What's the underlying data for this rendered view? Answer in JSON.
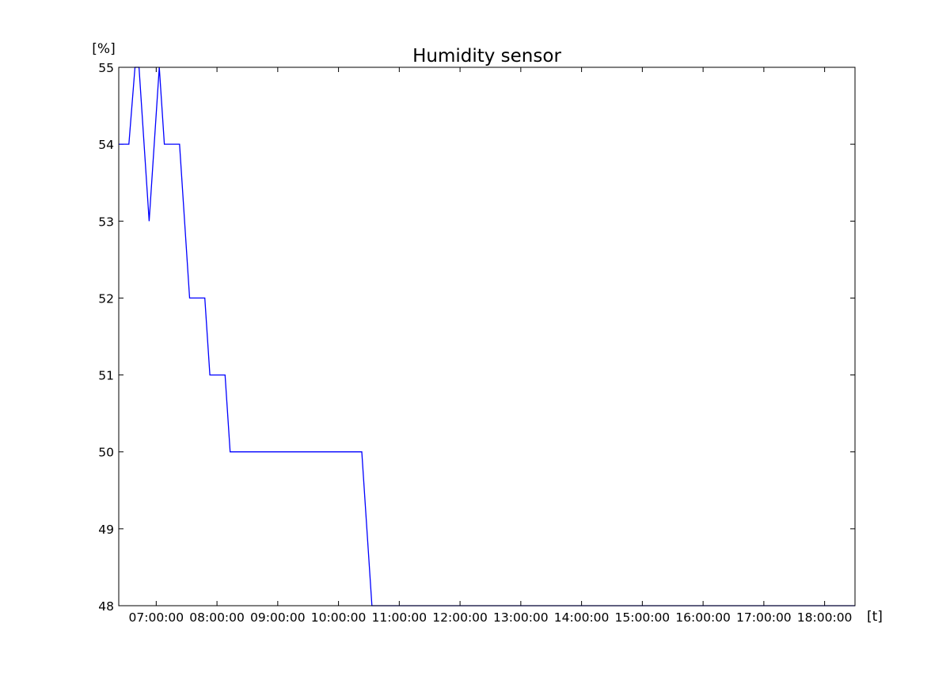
{
  "chart_data": {
    "type": "line",
    "title": "Humidity sensor",
    "xlabel": "[t]",
    "ylabel": "[%]",
    "x_range": [
      "06:23:00",
      "18:30:00"
    ],
    "ylim": [
      48,
      55
    ],
    "grid": false,
    "line_color": "#0000ff",
    "x_tick_labels": [
      "07:00:00",
      "08:00:00",
      "09:00:00",
      "10:00:00",
      "11:00:00",
      "12:00:00",
      "13:00:00",
      "14:00:00",
      "15:00:00",
      "16:00:00",
      "17:00:00",
      "18:00:00"
    ],
    "y_tick_labels": [
      "48",
      "49",
      "50",
      "51",
      "52",
      "53",
      "54",
      "55"
    ],
    "series": [
      {
        "x": [
          "06:23:00",
          "06:33:00",
          "06:39:00",
          "06:43:00",
          "06:53:00",
          "07:03:00",
          "07:08:00",
          "07:23:00",
          "07:33:00",
          "07:48:00",
          "07:53:00",
          "08:08:00",
          "08:13:00",
          "10:23:00",
          "10:33:00",
          "18:30:00"
        ],
        "y": [
          54,
          54,
          55,
          55,
          53,
          55,
          54,
          54,
          52,
          52,
          51,
          51,
          50,
          50,
          48,
          48
        ]
      }
    ]
  }
}
